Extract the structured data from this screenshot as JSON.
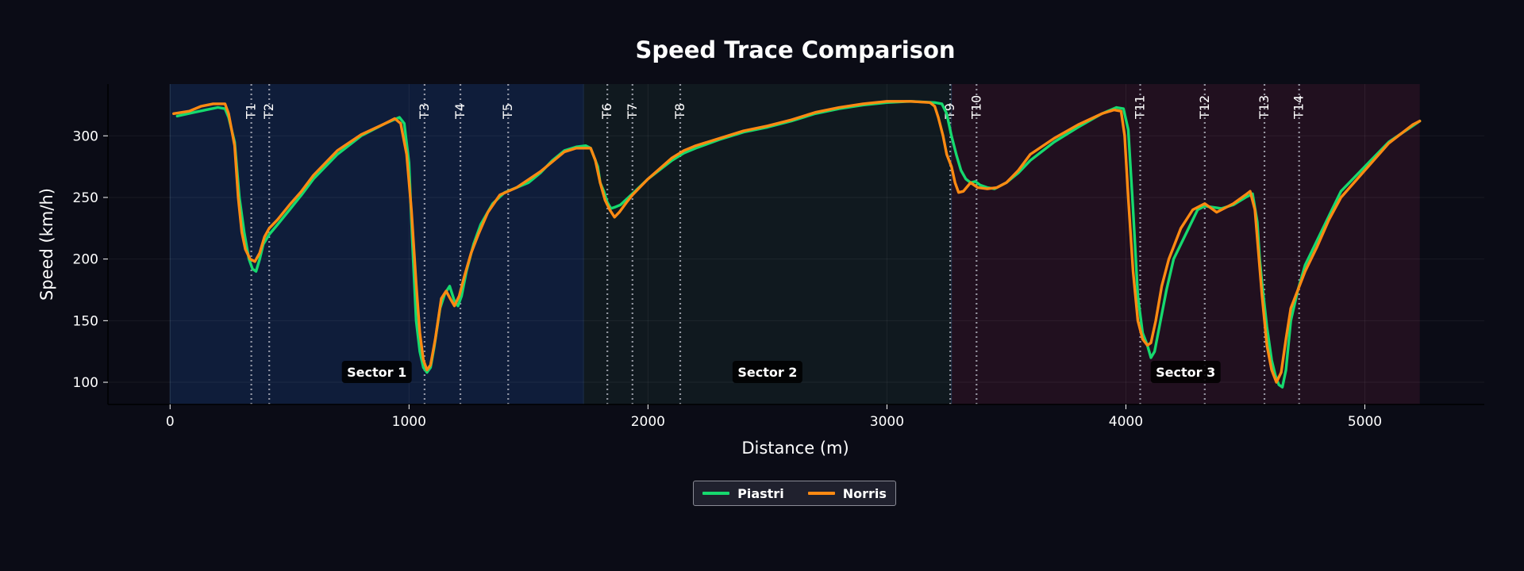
{
  "chart_data": {
    "type": "line",
    "title": "Speed Trace Comparison",
    "xlabel": "Distance (m)",
    "ylabel": "Speed (km/h)",
    "xlim": [
      -260,
      5500
    ],
    "ylim": [
      82,
      342
    ],
    "xticks": [
      0,
      1000,
      2000,
      3000,
      4000,
      5000
    ],
    "yticks": [
      100,
      150,
      200,
      250,
      300
    ],
    "grid": true,
    "legend_position": "bottom-center",
    "sectors": [
      {
        "label": "Sector 1",
        "start": 0,
        "end": 1730,
        "color": "#0f1d3a"
      },
      {
        "label": "Sector 2",
        "start": 1730,
        "end": 3270,
        "color": "#10191f"
      },
      {
        "label": "Sector 3",
        "start": 3270,
        "end": 5230,
        "color": "#21101f"
      }
    ],
    "corners": [
      {
        "label": "T1",
        "x": 340
      },
      {
        "label": "T2",
        "x": 415
      },
      {
        "label": "T3",
        "x": 1065
      },
      {
        "label": "T4",
        "x": 1215
      },
      {
        "label": "T5",
        "x": 1415
      },
      {
        "label": "T6",
        "x": 1830
      },
      {
        "label": "T7",
        "x": 1935
      },
      {
        "label": "T8",
        "x": 2135
      },
      {
        "label": "T9",
        "x": 3265
      },
      {
        "label": "T10",
        "x": 3375
      },
      {
        "label": "T11",
        "x": 4060
      },
      {
        "label": "T12",
        "x": 4330
      },
      {
        "label": "T13",
        "x": 4580
      },
      {
        "label": "T14",
        "x": 4725
      }
    ],
    "series": [
      {
        "name": "Piastri",
        "color": "#16d96e",
        "points": [
          [
            30,
            316
          ],
          [
            100,
            319
          ],
          [
            150,
            321
          ],
          [
            200,
            323
          ],
          [
            230,
            322
          ],
          [
            245,
            315
          ],
          [
            270,
            295
          ],
          [
            290,
            250
          ],
          [
            310,
            222
          ],
          [
            330,
            200
          ],
          [
            345,
            192
          ],
          [
            360,
            190
          ],
          [
            375,
            200
          ],
          [
            390,
            212
          ],
          [
            415,
            220
          ],
          [
            450,
            228
          ],
          [
            500,
            240
          ],
          [
            550,
            252
          ],
          [
            600,
            265
          ],
          [
            700,
            285
          ],
          [
            800,
            300
          ],
          [
            900,
            310
          ],
          [
            960,
            315
          ],
          [
            980,
            310
          ],
          [
            1000,
            278
          ],
          [
            1015,
            210
          ],
          [
            1030,
            150
          ],
          [
            1045,
            125
          ],
          [
            1060,
            112
          ],
          [
            1075,
            108
          ],
          [
            1090,
            112
          ],
          [
            1105,
            128
          ],
          [
            1130,
            160
          ],
          [
            1150,
            172
          ],
          [
            1170,
            178
          ],
          [
            1190,
            166
          ],
          [
            1205,
            162
          ],
          [
            1220,
            170
          ],
          [
            1240,
            190
          ],
          [
            1270,
            212
          ],
          [
            1300,
            228
          ],
          [
            1350,
            245
          ],
          [
            1400,
            254
          ],
          [
            1450,
            258
          ],
          [
            1500,
            262
          ],
          [
            1550,
            270
          ],
          [
            1600,
            280
          ],
          [
            1650,
            288
          ],
          [
            1700,
            291
          ],
          [
            1740,
            292
          ],
          [
            1760,
            290
          ],
          [
            1790,
            275
          ],
          [
            1800,
            262
          ],
          [
            1815,
            255
          ],
          [
            1830,
            246
          ],
          [
            1845,
            241
          ],
          [
            1860,
            242
          ],
          [
            1885,
            244
          ],
          [
            1935,
            253
          ],
          [
            2000,
            265
          ],
          [
            2100,
            280
          ],
          [
            2150,
            286
          ],
          [
            2200,
            290
          ],
          [
            2300,
            297
          ],
          [
            2400,
            303
          ],
          [
            2500,
            307
          ],
          [
            2600,
            312
          ],
          [
            2700,
            318
          ],
          [
            2800,
            322
          ],
          [
            2900,
            325
          ],
          [
            3000,
            327
          ],
          [
            3100,
            328
          ],
          [
            3200,
            327
          ],
          [
            3230,
            326
          ],
          [
            3250,
            318
          ],
          [
            3270,
            300
          ],
          [
            3290,
            285
          ],
          [
            3310,
            272
          ],
          [
            3330,
            265
          ],
          [
            3350,
            262
          ],
          [
            3370,
            263
          ],
          [
            3390,
            260
          ],
          [
            3420,
            258
          ],
          [
            3450,
            257
          ],
          [
            3500,
            262
          ],
          [
            3550,
            270
          ],
          [
            3600,
            280
          ],
          [
            3700,
            295
          ],
          [
            3800,
            307
          ],
          [
            3900,
            318
          ],
          [
            3960,
            323
          ],
          [
            3990,
            322
          ],
          [
            4010,
            305
          ],
          [
            4030,
            240
          ],
          [
            4050,
            170
          ],
          [
            4070,
            140
          ],
          [
            4090,
            130
          ],
          [
            4105,
            120
          ],
          [
            4120,
            125
          ],
          [
            4140,
            145
          ],
          [
            4170,
            175
          ],
          [
            4200,
            200
          ],
          [
            4250,
            220
          ],
          [
            4300,
            240
          ],
          [
            4330,
            243
          ],
          [
            4400,
            241
          ],
          [
            4450,
            244
          ],
          [
            4500,
            250
          ],
          [
            4530,
            253
          ],
          [
            4550,
            230
          ],
          [
            4560,
            200
          ],
          [
            4570,
            180
          ],
          [
            4590,
            145
          ],
          [
            4610,
            118
          ],
          [
            4625,
            106
          ],
          [
            4640,
            98
          ],
          [
            4655,
            96
          ],
          [
            4670,
            110
          ],
          [
            4690,
            150
          ],
          [
            4720,
            175
          ],
          [
            4750,
            195
          ],
          [
            4800,
            215
          ],
          [
            4850,
            235
          ],
          [
            4900,
            255
          ],
          [
            5000,
            275
          ],
          [
            5100,
            295
          ],
          [
            5200,
            308
          ],
          [
            5230,
            312
          ]
        ]
      },
      {
        "name": "Norris",
        "color": "#ff8a12",
        "points": [
          [
            15,
            318
          ],
          [
            80,
            320
          ],
          [
            130,
            324
          ],
          [
            180,
            326
          ],
          [
            230,
            326
          ],
          [
            245,
            318
          ],
          [
            270,
            292
          ],
          [
            285,
            250
          ],
          [
            300,
            222
          ],
          [
            315,
            208
          ],
          [
            335,
            200
          ],
          [
            355,
            198
          ],
          [
            375,
            205
          ],
          [
            395,
            218
          ],
          [
            415,
            225
          ],
          [
            450,
            232
          ],
          [
            500,
            244
          ],
          [
            550,
            255
          ],
          [
            600,
            268
          ],
          [
            700,
            288
          ],
          [
            800,
            301
          ],
          [
            900,
            310
          ],
          [
            940,
            314
          ],
          [
            965,
            310
          ],
          [
            990,
            285
          ],
          [
            1010,
            240
          ],
          [
            1030,
            180
          ],
          [
            1045,
            140
          ],
          [
            1060,
            118
          ],
          [
            1075,
            110
          ],
          [
            1090,
            114
          ],
          [
            1110,
            135
          ],
          [
            1135,
            168
          ],
          [
            1155,
            174
          ],
          [
            1175,
            167
          ],
          [
            1190,
            162
          ],
          [
            1210,
            170
          ],
          [
            1230,
            185
          ],
          [
            1260,
            205
          ],
          [
            1290,
            220
          ],
          [
            1330,
            238
          ],
          [
            1380,
            252
          ],
          [
            1450,
            258
          ],
          [
            1550,
            271
          ],
          [
            1650,
            287
          ],
          [
            1700,
            290
          ],
          [
            1760,
            290
          ],
          [
            1780,
            280
          ],
          [
            1800,
            262
          ],
          [
            1820,
            248
          ],
          [
            1840,
            240
          ],
          [
            1860,
            234
          ],
          [
            1880,
            238
          ],
          [
            1910,
            246
          ],
          [
            1935,
            252
          ],
          [
            2000,
            265
          ],
          [
            2100,
            282
          ],
          [
            2150,
            288
          ],
          [
            2200,
            292
          ],
          [
            2300,
            298
          ],
          [
            2400,
            304
          ],
          [
            2500,
            308
          ],
          [
            2600,
            313
          ],
          [
            2700,
            319
          ],
          [
            2800,
            323
          ],
          [
            2900,
            326
          ],
          [
            3000,
            328
          ],
          [
            3100,
            328
          ],
          [
            3180,
            327
          ],
          [
            3200,
            324
          ],
          [
            3215,
            315
          ],
          [
            3235,
            300
          ],
          [
            3250,
            285
          ],
          [
            3270,
            275
          ],
          [
            3285,
            262
          ],
          [
            3300,
            254
          ],
          [
            3320,
            255
          ],
          [
            3350,
            262
          ],
          [
            3380,
            258
          ],
          [
            3420,
            257
          ],
          [
            3460,
            258
          ],
          [
            3500,
            262
          ],
          [
            3550,
            272
          ],
          [
            3600,
            285
          ],
          [
            3700,
            298
          ],
          [
            3800,
            309
          ],
          [
            3900,
            318
          ],
          [
            3950,
            321
          ],
          [
            3980,
            320
          ],
          [
            3995,
            300
          ],
          [
            4010,
            250
          ],
          [
            4030,
            190
          ],
          [
            4050,
            150
          ],
          [
            4070,
            135
          ],
          [
            4090,
            130
          ],
          [
            4105,
            132
          ],
          [
            4125,
            150
          ],
          [
            4150,
            178
          ],
          [
            4180,
            200
          ],
          [
            4230,
            225
          ],
          [
            4280,
            240
          ],
          [
            4330,
            245
          ],
          [
            4380,
            238
          ],
          [
            4450,
            245
          ],
          [
            4500,
            252
          ],
          [
            4520,
            255
          ],
          [
            4540,
            240
          ],
          [
            4555,
            205
          ],
          [
            4570,
            170
          ],
          [
            4590,
            130
          ],
          [
            4610,
            110
          ],
          [
            4630,
            100
          ],
          [
            4650,
            108
          ],
          [
            4670,
            135
          ],
          [
            4690,
            160
          ],
          [
            4720,
            175
          ],
          [
            4750,
            190
          ],
          [
            4800,
            210
          ],
          [
            4850,
            232
          ],
          [
            4900,
            250
          ],
          [
            5000,
            272
          ],
          [
            5100,
            294
          ],
          [
            5200,
            309
          ],
          [
            5230,
            312
          ]
        ]
      }
    ]
  }
}
